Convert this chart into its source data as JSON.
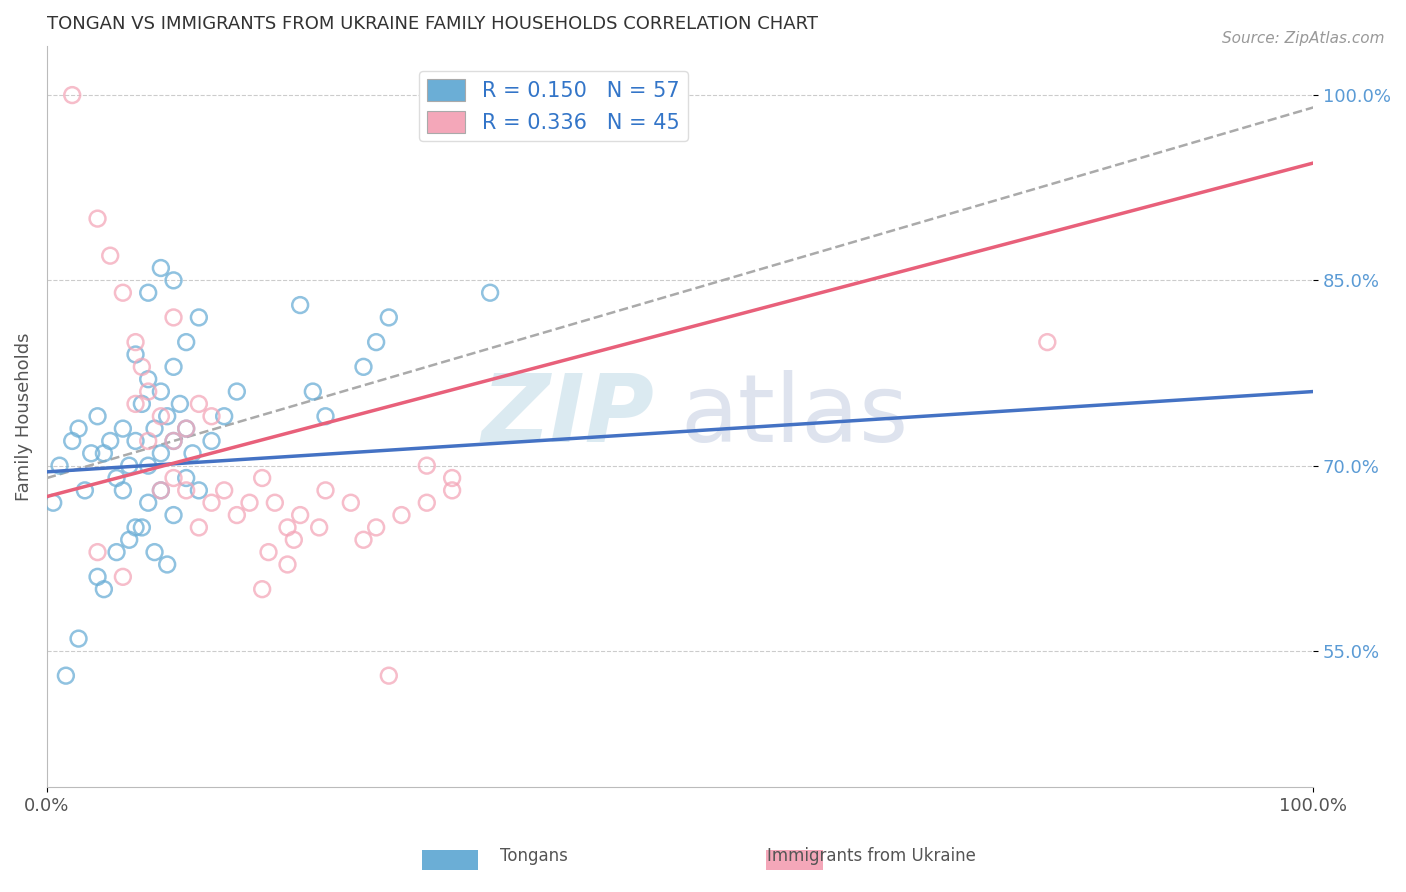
{
  "title": "TONGAN VS IMMIGRANTS FROM UKRAINE FAMILY HOUSEHOLDS CORRELATION CHART",
  "source": "Source: ZipAtlas.com",
  "ylabel": "Family Households",
  "xlim": [
    0.0,
    1.0
  ],
  "ylim": [
    0.44,
    1.04
  ],
  "yticks": [
    0.55,
    0.7,
    0.85,
    1.0
  ],
  "ytick_labels": [
    "55.0%",
    "70.0%",
    "85.0%",
    "100.0%"
  ],
  "xtick_labels": [
    "0.0%",
    "100.0%"
  ],
  "legend_R1": "R = 0.150",
  "legend_N1": "N = 57",
  "legend_R2": "R = 0.336",
  "legend_N2": "N = 45",
  "color_blue": "#6baed6",
  "color_pink": "#f4a7b9",
  "color_blue_line": "#4472c4",
  "color_pink_line": "#e8607a",
  "color_dash": "#aaaaaa",
  "background_color": "#ffffff",
  "grid_color": "#cccccc",
  "blue_scatter_x": [
    0.005,
    0.01,
    0.02,
    0.025,
    0.03,
    0.035,
    0.04,
    0.045,
    0.05,
    0.055,
    0.06,
    0.065,
    0.07,
    0.075,
    0.08,
    0.085,
    0.09,
    0.095,
    0.1,
    0.105,
    0.11,
    0.115,
    0.12,
    0.13,
    0.14,
    0.15,
    0.06,
    0.07,
    0.08,
    0.09,
    0.1,
    0.11,
    0.07,
    0.08,
    0.09,
    0.1,
    0.11,
    0.12,
    0.08,
    0.09,
    0.1,
    0.2,
    0.21,
    0.22,
    0.25,
    0.26,
    0.27,
    0.04,
    0.045,
    0.055,
    0.065,
    0.075,
    0.085,
    0.095,
    0.015,
    0.025,
    0.35
  ],
  "blue_scatter_y": [
    0.67,
    0.7,
    0.72,
    0.73,
    0.68,
    0.71,
    0.74,
    0.71,
    0.72,
    0.69,
    0.73,
    0.7,
    0.72,
    0.75,
    0.7,
    0.73,
    0.71,
    0.74,
    0.72,
    0.75,
    0.73,
    0.71,
    0.68,
    0.72,
    0.74,
    0.76,
    0.68,
    0.65,
    0.67,
    0.68,
    0.66,
    0.69,
    0.79,
    0.77,
    0.76,
    0.78,
    0.8,
    0.82,
    0.84,
    0.86,
    0.85,
    0.83,
    0.76,
    0.74,
    0.78,
    0.8,
    0.82,
    0.61,
    0.6,
    0.63,
    0.64,
    0.65,
    0.63,
    0.62,
    0.53,
    0.56,
    0.84
  ],
  "pink_scatter_x": [
    0.02,
    0.04,
    0.05,
    0.06,
    0.07,
    0.075,
    0.08,
    0.09,
    0.1,
    0.11,
    0.12,
    0.13,
    0.14,
    0.15,
    0.16,
    0.17,
    0.18,
    0.19,
    0.2,
    0.22,
    0.24,
    0.25,
    0.26,
    0.28,
    0.3,
    0.32,
    0.07,
    0.08,
    0.09,
    0.1,
    0.11,
    0.12,
    0.13,
    0.175,
    0.195,
    0.215,
    0.3,
    0.32,
    0.04,
    0.06,
    0.17,
    0.19,
    0.79,
    0.1,
    0.27
  ],
  "pink_scatter_y": [
    1.0,
    0.9,
    0.87,
    0.84,
    0.8,
    0.78,
    0.72,
    0.68,
    0.69,
    0.68,
    0.65,
    0.67,
    0.68,
    0.66,
    0.67,
    0.69,
    0.67,
    0.65,
    0.66,
    0.68,
    0.67,
    0.64,
    0.65,
    0.66,
    0.67,
    0.68,
    0.75,
    0.76,
    0.74,
    0.72,
    0.73,
    0.75,
    0.74,
    0.63,
    0.64,
    0.65,
    0.7,
    0.69,
    0.63,
    0.61,
    0.6,
    0.62,
    0.8,
    0.82,
    0.53
  ],
  "blue_line_x0": 0.0,
  "blue_line_x1": 1.0,
  "blue_line_y0": 0.695,
  "blue_line_y1": 0.76,
  "pink_line_x0": 0.0,
  "pink_line_x1": 1.0,
  "pink_line_y0": 0.675,
  "pink_line_y1": 0.945,
  "dash_line_x0": 0.0,
  "dash_line_x1": 1.0,
  "dash_line_y0": 0.69,
  "dash_line_y1": 0.99
}
